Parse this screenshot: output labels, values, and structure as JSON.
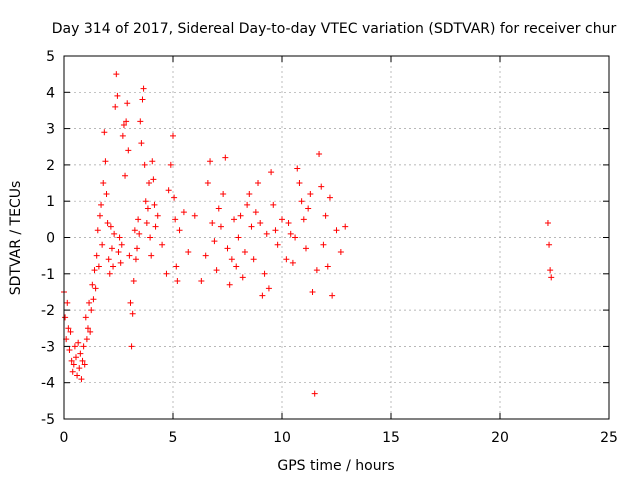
{
  "chart_data": {
    "type": "scatter",
    "title": "Day 314 of 2017, Sidereal Day-to-day VTEC variation (SDTVAR) for receiver chur",
    "xlabel": "GPS time / hours",
    "ylabel": "SDTVAR / TECUs",
    "xlim": [
      0,
      25
    ],
    "ylim": [
      -5,
      5
    ],
    "grid": true,
    "marker": "+",
    "color": "#ff0000",
    "xticks": [
      0,
      5,
      10,
      15,
      20,
      25
    ],
    "xtick_labels": [
      "0",
      "5",
      "10",
      "15",
      "20",
      "25"
    ],
    "yticks": [
      -5,
      -4,
      -3,
      -2,
      -1,
      0,
      1,
      2,
      3,
      4,
      5
    ],
    "ytick_labels": [
      "-5",
      "-4",
      "-3",
      "-2",
      "-1",
      "0",
      "1",
      "2",
      "3",
      "4",
      "5"
    ],
    "series": [
      {
        "name": "chur",
        "x": [
          0.0,
          0.05,
          0.1,
          0.15,
          0.2,
          0.25,
          0.3,
          0.35,
          0.4,
          0.45,
          0.5,
          0.55,
          0.6,
          0.65,
          0.7,
          0.75,
          0.8,
          0.85,
          0.9,
          0.95,
          1.0,
          1.05,
          1.1,
          1.15,
          1.2,
          1.25,
          1.3,
          1.35,
          1.4,
          1.45,
          1.5,
          1.55,
          1.6,
          1.65,
          1.7,
          1.75,
          1.8,
          1.85,
          1.9,
          1.95,
          2.0,
          2.05,
          2.1,
          2.15,
          2.2,
          2.25,
          2.3,
          2.35,
          2.4,
          2.45,
          2.5,
          2.55,
          2.6,
          2.65,
          2.7,
          2.75,
          2.8,
          2.85,
          2.9,
          2.95,
          3.0,
          3.05,
          3.1,
          3.15,
          3.2,
          3.25,
          3.3,
          3.35,
          3.4,
          3.45,
          3.5,
          3.55,
          3.6,
          3.65,
          3.7,
          3.75,
          3.8,
          3.85,
          3.9,
          3.95,
          4.0,
          4.05,
          4.1,
          4.15,
          4.2,
          4.3,
          4.5,
          4.7,
          4.8,
          4.9,
          5.0,
          5.05,
          5.1,
          5.15,
          5.2,
          5.3,
          5.5,
          5.7,
          6.0,
          6.3,
          6.5,
          6.6,
          6.7,
          6.8,
          6.9,
          7.0,
          7.1,
          7.2,
          7.3,
          7.4,
          7.5,
          7.6,
          7.7,
          7.8,
          7.9,
          8.0,
          8.1,
          8.2,
          8.3,
          8.4,
          8.5,
          8.6,
          8.7,
          8.8,
          8.9,
          9.0,
          9.1,
          9.2,
          9.3,
          9.4,
          9.5,
          9.6,
          9.7,
          9.8,
          10.0,
          10.2,
          10.3,
          10.4,
          10.5,
          10.6,
          10.7,
          10.8,
          10.9,
          11.0,
          11.1,
          11.2,
          11.3,
          11.4,
          11.5,
          11.6,
          11.7,
          11.8,
          11.9,
          12.0,
          12.1,
          12.2,
          12.3,
          12.5,
          12.7,
          12.9,
          22.2,
          22.25,
          22.3,
          22.35
        ],
        "y": [
          -1.5,
          -2.2,
          -2.8,
          -1.8,
          -2.5,
          -3.1,
          -2.6,
          -3.4,
          -3.7,
          -3.5,
          -3.0,
          -3.3,
          -3.8,
          -2.9,
          -3.6,
          -3.2,
          -3.9,
          -3.4,
          -3.0,
          -3.5,
          -2.2,
          -2.8,
          -2.5,
          -1.8,
          -2.6,
          -2.0,
          -1.3,
          -1.7,
          -0.9,
          -1.4,
          -0.5,
          0.2,
          -0.8,
          0.6,
          0.9,
          -0.2,
          1.5,
          2.9,
          2.1,
          1.2,
          0.4,
          -0.6,
          -1.0,
          0.3,
          -0.3,
          -0.8,
          0.1,
          3.6,
          4.5,
          3.9,
          -0.4,
          0.0,
          -0.7,
          -0.2,
          2.8,
          3.1,
          1.7,
          3.2,
          3.7,
          2.4,
          -0.5,
          -1.8,
          -3.0,
          -2.1,
          -1.2,
          0.2,
          -0.6,
          -0.3,
          0.5,
          0.1,
          3.2,
          2.6,
          3.8,
          4.1,
          2.0,
          1.0,
          0.4,
          0.8,
          1.5,
          0.0,
          -0.5,
          2.1,
          1.6,
          0.9,
          0.3,
          0.6,
          -0.2,
          -1.0,
          1.3,
          2.0,
          2.8,
          1.1,
          0.5,
          -0.8,
          -1.2,
          0.2,
          0.7,
          -0.4,
          0.6,
          -1.2,
          -0.5,
          1.5,
          2.1,
          0.4,
          -0.1,
          -0.9,
          0.8,
          0.3,
          1.2,
          2.2,
          -0.3,
          -1.3,
          -0.6,
          0.5,
          -0.8,
          0.0,
          0.6,
          -1.1,
          -0.4,
          0.9,
          1.2,
          0.3,
          -0.6,
          0.7,
          1.5,
          0.4,
          -1.6,
          -1.0,
          0.1,
          -1.4,
          1.8,
          0.9,
          0.2,
          -0.2,
          0.5,
          -0.6,
          0.4,
          0.1,
          -0.7,
          0.0,
          1.9,
          1.5,
          1.0,
          0.5,
          -0.3,
          0.8,
          1.2,
          -1.5,
          -4.3,
          -0.9,
          2.3,
          1.4,
          -0.2,
          0.6,
          -0.8,
          1.1,
          -1.6,
          0.2,
          -0.4,
          0.3,
          0.4,
          -0.2,
          -0.9,
          -1.1
        ]
      }
    ]
  }
}
